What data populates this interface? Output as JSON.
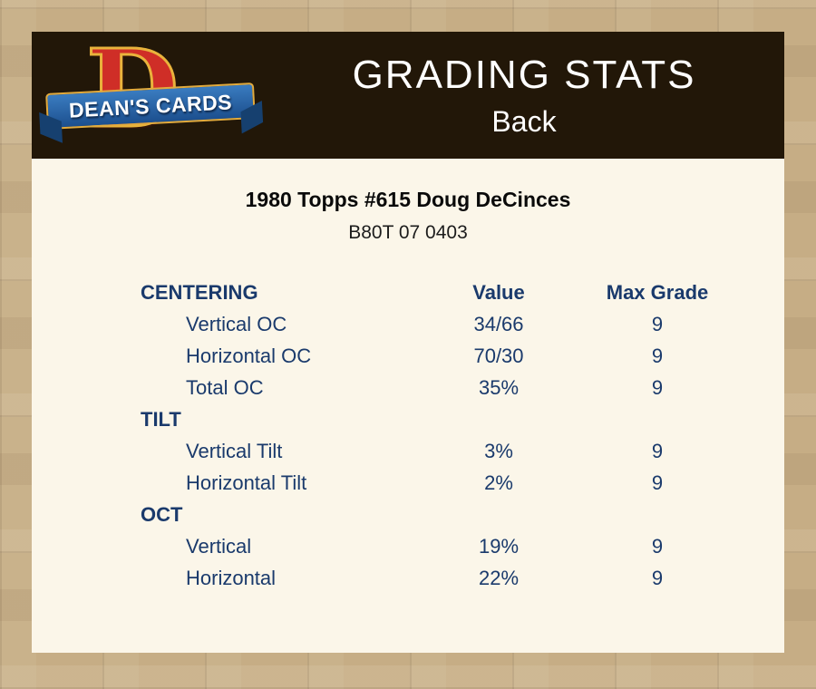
{
  "header": {
    "title": "GRADING STATS",
    "subtitle": "Back",
    "logo": {
      "letter": "D",
      "brand": "DEAN'S CARDS"
    }
  },
  "card": {
    "title": "1980 Topps #615 Doug DeCinces",
    "serial": "B80T 07 0403"
  },
  "table": {
    "columns": {
      "section": "CENTERING",
      "value": "Value",
      "max_grade": "Max Grade"
    },
    "sections": [
      {
        "label": "CENTERING",
        "rows": [
          {
            "label": "Vertical OC",
            "value": "34/66",
            "max": "9"
          },
          {
            "label": "Horizontal OC",
            "value": "70/30",
            "max": "9"
          },
          {
            "label": "Total OC",
            "value": "35%",
            "max": "9"
          }
        ]
      },
      {
        "label": "TILT",
        "rows": [
          {
            "label": "Vertical Tilt",
            "value": "3%",
            "max": "9"
          },
          {
            "label": "Horizontal Tilt",
            "value": "2%",
            "max": "9"
          }
        ]
      },
      {
        "label": "OCT",
        "rows": [
          {
            "label": "Vertical",
            "value": "19%",
            "max": "9"
          },
          {
            "label": "Horizontal",
            "value": "22%",
            "max": "9"
          }
        ]
      }
    ]
  },
  "colors": {
    "background_tan": "#c6ad85",
    "header_bg": "#221708",
    "panel_bg": "#fbf6e9",
    "table_text": "#1a3a6c",
    "logo_red": "#cf2e27",
    "logo_blue": "#1c4f8e",
    "logo_gold": "#e2ab3e"
  }
}
